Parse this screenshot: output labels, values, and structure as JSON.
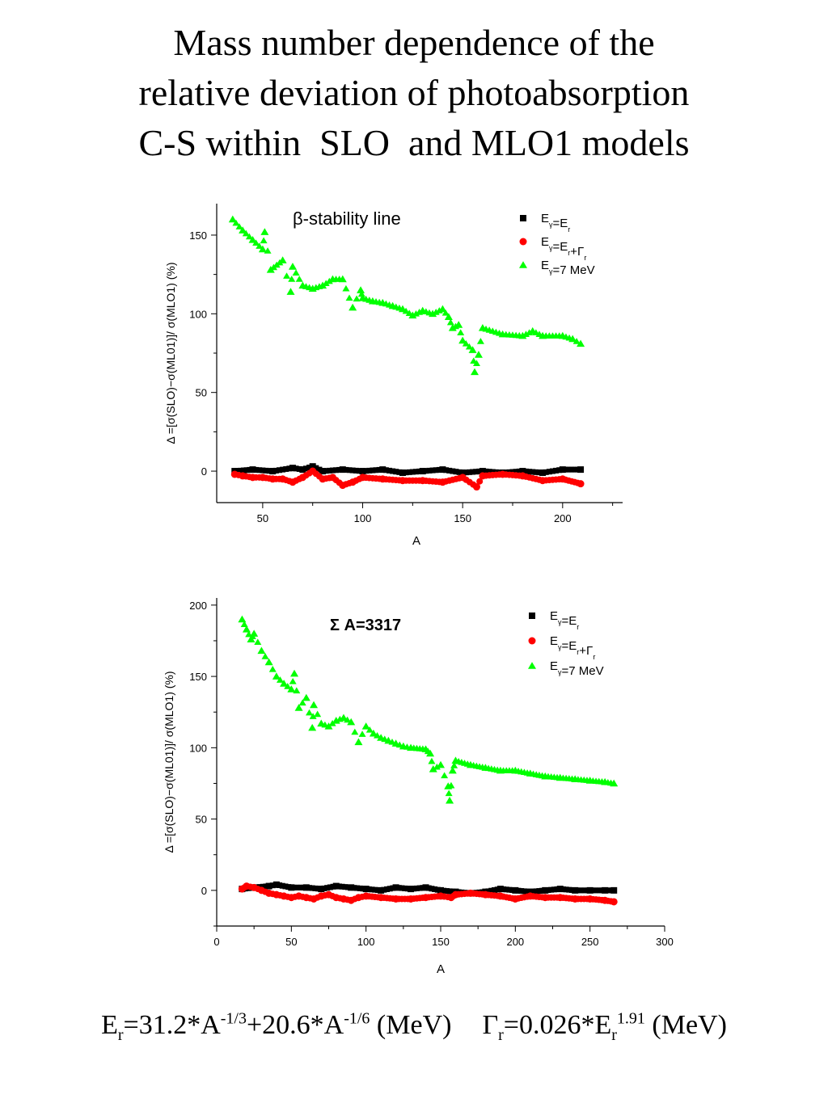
{
  "slide": {
    "title_lines": [
      "Mass number dependence of the",
      "relative deviation of photoabsorption",
      "C-S within  SLO  and MLO1 models"
    ]
  },
  "formula": {
    "er_lhs": "E",
    "er_lhs_sub": "r",
    "er_part1": "=31.2*A",
    "er_exp1": "-1/3",
    "er_part2": "+20.6*A",
    "er_exp2": "-1/6",
    "er_unit": " (MeV)",
    "gamma_lhs": "Γ",
    "gamma_lhs_sub": "r",
    "gamma_part1": "=0.026*E",
    "gamma_sub": "r",
    "gamma_exp": "1.91",
    "gamma_unit": " (MeV)"
  },
  "colors": {
    "black": "#000000",
    "red": "#ff0000",
    "green": "#00ff00",
    "axis": "#000000"
  },
  "chart_data": [
    {
      "type": "scatter",
      "title": "β-stability line",
      "xlabel": "A",
      "ylabel": "Δ =[σ(SLO)−σ(ML01)]/ σ(MLO1) (%)",
      "xlim": [
        27,
        230
      ],
      "ylim": [
        -20,
        170
      ],
      "xticks": [
        50,
        100,
        150,
        200
      ],
      "yticks": [
        0,
        50,
        100,
        150
      ],
      "legend_position": "top-right",
      "grid": false,
      "series": [
        {
          "legend": "E",
          "legend_sub": "γ",
          "legend_mid": "=E",
          "legend_sub2": "r",
          "legend_tail": "",
          "legend_sub3": "",
          "color": "#000000",
          "marker": "square",
          "x": [
            36,
            45,
            55,
            65,
            70,
            75,
            80,
            90,
            100,
            110,
            120,
            130,
            140,
            150,
            160,
            170,
            180,
            190,
            200,
            209
          ],
          "y": [
            0,
            1,
            0,
            2,
            1,
            3,
            0,
            1,
            0,
            1,
            -1,
            0,
            1,
            -1,
            0,
            -1,
            0,
            -1,
            1,
            1
          ]
        },
        {
          "legend": "E",
          "legend_sub": "γ",
          "legend_mid": "=E",
          "legend_sub2": "r",
          "legend_tail": "+Γ",
          "legend_sub3": "r",
          "color": "#ff0000",
          "marker": "circle",
          "x": [
            36,
            40,
            45,
            50,
            55,
            60,
            65,
            70,
            75,
            80,
            85,
            90,
            95,
            100,
            110,
            120,
            130,
            140,
            150,
            157,
            160,
            170,
            180,
            190,
            200,
            209
          ],
          "y": [
            -2,
            -3,
            -4,
            -4,
            -5,
            -5,
            -7,
            -4,
            0,
            -5,
            -4,
            -9,
            -7,
            -4,
            -5,
            -6,
            -6,
            -7,
            -4,
            -10,
            -3,
            -2,
            -3,
            -6,
            -5,
            -8
          ]
        },
        {
          "legend": "E",
          "legend_sub": "γ",
          "legend_mid": "=7 MeV",
          "legend_sub2": "",
          "legend_tail": "",
          "legend_sub3": "",
          "color": "#00ff00",
          "marker": "triangle",
          "x": [
            35,
            40,
            45,
            50,
            51,
            54,
            60,
            64,
            65,
            70,
            75,
            80,
            85,
            90,
            95,
            99,
            100,
            105,
            110,
            115,
            120,
            125,
            130,
            135,
            140,
            143,
            145,
            148,
            150,
            155,
            156,
            158,
            160,
            170,
            180,
            185,
            190,
            200,
            205,
            209
          ],
          "y": [
            160,
            153,
            147,
            141,
            152,
            128,
            134,
            114,
            130,
            118,
            116,
            118,
            122,
            122,
            104,
            115,
            110,
            108,
            107,
            105,
            103,
            99,
            102,
            100,
            103,
            98,
            91,
            93,
            83,
            77,
            63,
            74,
            91,
            87,
            86,
            89,
            86,
            86,
            84,
            81
          ]
        }
      ]
    },
    {
      "type": "scatter",
      "title": "Σ A=3317",
      "xlabel": "A",
      "ylabel": "Δ =[σ(SLO)−σ(ML01)]/ σ(MLO1) (%)",
      "xlim": [
        0,
        300
      ],
      "ylim": [
        -25,
        205
      ],
      "xticks": [
        0,
        50,
        100,
        150,
        200,
        250,
        300
      ],
      "yticks": [
        0,
        50,
        100,
        150,
        200
      ],
      "legend_position": "top-right",
      "grid": false,
      "series": [
        {
          "legend": "E",
          "legend_sub": "γ",
          "legend_mid": "=E",
          "legend_sub2": "r",
          "legend_tail": "",
          "legend_sub3": "",
          "color": "#000000",
          "marker": "square",
          "x": [
            17,
            25,
            35,
            40,
            50,
            60,
            70,
            80,
            90,
            100,
            110,
            120,
            130,
            140,
            150,
            160,
            170,
            180,
            190,
            200,
            210,
            220,
            230,
            240,
            250,
            260,
            266
          ],
          "y": [
            1,
            2,
            3,
            4,
            2,
            2,
            1,
            3,
            2,
            1,
            0,
            2,
            1,
            2,
            0,
            -1,
            -2,
            -1,
            1,
            0,
            -1,
            0,
            1,
            0,
            0,
            0,
            0
          ]
        },
        {
          "legend": "E",
          "legend_sub": "γ",
          "legend_mid": "=E",
          "legend_sub2": "r",
          "legend_tail": "+Γ",
          "legend_sub3": "r",
          "color": "#ff0000",
          "marker": "circle",
          "x": [
            17,
            20,
            25,
            30,
            35,
            40,
            45,
            50,
            55,
            60,
            65,
            70,
            75,
            80,
            85,
            90,
            95,
            100,
            110,
            120,
            130,
            140,
            150,
            157,
            160,
            170,
            180,
            190,
            200,
            210,
            220,
            230,
            240,
            250,
            260,
            266
          ],
          "y": [
            1,
            3,
            2,
            0,
            -2,
            -3,
            -4,
            -5,
            -4,
            -5,
            -6,
            -4,
            -3,
            -5,
            -6,
            -7,
            -5,
            -4,
            -5,
            -6,
            -6,
            -5,
            -4,
            -5,
            -3,
            -2,
            -3,
            -4,
            -6,
            -4,
            -5,
            -5,
            -6,
            -6,
            -7,
            -8
          ]
        },
        {
          "legend": "E",
          "legend_sub": "γ",
          "legend_mid": "=7 MeV",
          "legend_sub2": "",
          "legend_tail": "",
          "legend_sub3": "",
          "color": "#00ff00",
          "marker": "triangle",
          "x": [
            17,
            20,
            23,
            25,
            30,
            35,
            40,
            45,
            50,
            52,
            55,
            60,
            64,
            65,
            70,
            75,
            80,
            85,
            90,
            95,
            100,
            105,
            110,
            115,
            120,
            125,
            130,
            140,
            143,
            145,
            150,
            155,
            156,
            158,
            160,
            170,
            180,
            190,
            200,
            210,
            220,
            230,
            240,
            250,
            260,
            266
          ],
          "y": [
            190,
            183,
            176,
            180,
            168,
            160,
            150,
            145,
            141,
            152,
            128,
            135,
            114,
            130,
            117,
            115,
            119,
            121,
            118,
            104,
            115,
            110,
            107,
            105,
            103,
            101,
            100,
            99,
            96,
            85,
            88,
            73,
            63,
            84,
            91,
            88,
            86,
            84,
            84,
            82,
            80,
            79,
            78,
            77,
            76,
            75
          ]
        }
      ]
    }
  ]
}
